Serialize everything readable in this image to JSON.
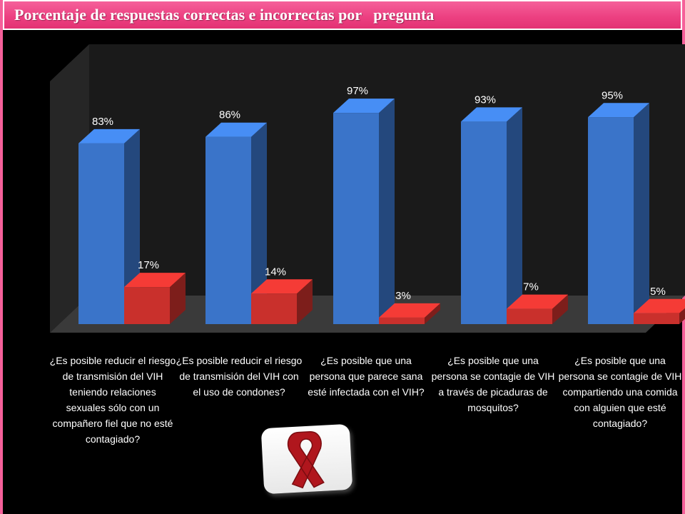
{
  "title": "Porcentaje de respuestas correctas e incorrectas por   pregunta",
  "colors": {
    "correct": "#3a74c9",
    "incorrect": "#c9302c",
    "title_bg": "#ec3f80"
  },
  "chart_data": {
    "type": "bar",
    "categories": [
      "¿Es posible reducir el riesgo de transmisión del VIH teniendo relaciones sexuales sólo con un compañero fiel que no esté contagiado?",
      "¿Es posible reducir el riesgo de transmisión del VIH con el uso de condones?",
      "¿Es posible que una persona que parece sana esté infectada con el VIH?",
      "¿Es posible que una persona se contagie de VIH a través de picaduras de mosquitos?",
      "¿Es posible que una persona se contagie de VIH compartiendo una comida con alguien que esté contagiado?"
    ],
    "series": [
      {
        "values": [
          83,
          86,
          97,
          93,
          95
        ],
        "labels": [
          "83%",
          "86%",
          "97%",
          "93%",
          "95%"
        ],
        "color": "#3a74c9"
      },
      {
        "values": [
          17,
          14,
          3,
          7,
          5
        ],
        "labels": [
          "17%",
          "14%",
          "3%",
          "7%",
          "5%"
        ],
        "color": "#c9302c"
      }
    ],
    "ylim": [
      0,
      100
    ],
    "grid": false,
    "legend": "none",
    "style": "3d"
  },
  "logo": {
    "name": "red-ribbon-icon"
  }
}
